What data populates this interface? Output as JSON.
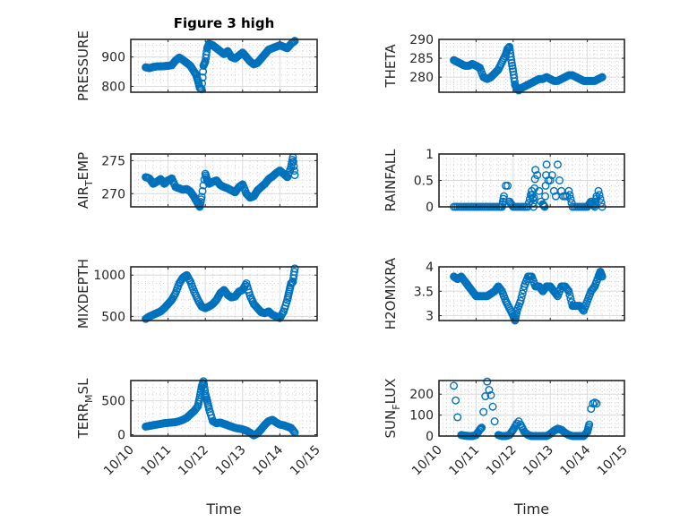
{
  "chart_data": [
    {
      "type": "scatter",
      "title": "Figure 3 high",
      "ylabel": "PRESSURE",
      "xlabel": "",
      "xlim": [
        "10/10",
        "10/15"
      ],
      "ylim": [
        780,
        960
      ],
      "yticks": [
        800,
        900
      ],
      "xticks": [
        "10/10",
        "10/11",
        "10/12",
        "10/13",
        "10/14",
        "10/15"
      ],
      "grid": true,
      "series": [
        {
          "name": "PRESSURE",
          "x": [
            0.4,
            0.5,
            0.6,
            0.7,
            0.8,
            0.9,
            1.0,
            1.1,
            1.2,
            1.3,
            1.4,
            1.5,
            1.6,
            1.7,
            1.75,
            1.8,
            1.85,
            1.9,
            1.95,
            2.0,
            2.05,
            2.1,
            2.2,
            2.3,
            2.4,
            2.5,
            2.6,
            2.7,
            2.8,
            2.9,
            3.0,
            3.1,
            3.2,
            3.3,
            3.4,
            3.5,
            3.6,
            3.7,
            3.8,
            3.9,
            4.0,
            4.1,
            4.2,
            4.3,
            4.4
          ],
          "y": [
            865,
            862,
            866,
            868,
            868,
            869,
            870,
            872,
            888,
            898,
            890,
            880,
            870,
            850,
            840,
            820,
            795,
            790,
            870,
            885,
            930,
            945,
            940,
            930,
            920,
            910,
            920,
            900,
            895,
            905,
            915,
            900,
            885,
            875,
            880,
            895,
            910,
            925,
            930,
            935,
            940,
            935,
            930,
            945,
            955
          ]
        }
      ]
    },
    {
      "type": "scatter",
      "title": "",
      "ylabel": "THETA",
      "xlabel": "",
      "xlim": [
        "10/10",
        "10/15"
      ],
      "ylim": [
        276,
        290
      ],
      "yticks": [
        280,
        285,
        290
      ],
      "xticks": [
        "10/10",
        "10/11",
        "10/12",
        "10/13",
        "10/14",
        "10/15"
      ],
      "grid": true,
      "series": [
        {
          "name": "THETA",
          "x": [
            0.4,
            0.5,
            0.6,
            0.7,
            0.8,
            0.9,
            1.0,
            1.1,
            1.2,
            1.3,
            1.4,
            1.5,
            1.6,
            1.7,
            1.8,
            1.85,
            1.9,
            1.95,
            2.0,
            2.05,
            2.1,
            2.15,
            2.2,
            2.3,
            2.4,
            2.5,
            2.6,
            2.7,
            2.8,
            2.9,
            3.0,
            3.1,
            3.2,
            3.3,
            3.4,
            3.5,
            3.6,
            3.7,
            3.8,
            3.9,
            4.0,
            4.1,
            4.2,
            4.3,
            4.4
          ],
          "y": [
            284.5,
            284,
            283.5,
            283,
            283,
            283.5,
            283,
            282.5,
            280,
            279.5,
            280,
            281,
            282,
            284,
            286,
            287.5,
            288,
            284.5,
            281.5,
            278,
            277,
            276.5,
            277,
            277.5,
            278,
            278.5,
            279,
            279.5,
            279.5,
            280,
            279.5,
            279,
            279,
            279.5,
            280,
            280.5,
            280.5,
            280,
            279.5,
            279,
            279,
            279,
            279,
            279.5,
            280
          ]
        }
      ]
    },
    {
      "type": "scatter",
      "title": "",
      "ylabel": "AIR_TEMP",
      "xlabel": "",
      "xlim": [
        "10/10",
        "10/15"
      ],
      "ylim": [
        268,
        276
      ],
      "yticks": [
        270,
        275
      ],
      "xticks": [
        "10/10",
        "10/11",
        "10/12",
        "10/13",
        "10/14",
        "10/15"
      ],
      "grid": true,
      "series": [
        {
          "name": "AIR_TEMP",
          "x": [
            0.4,
            0.5,
            0.6,
            0.7,
            0.8,
            0.9,
            1.0,
            1.1,
            1.2,
            1.3,
            1.4,
            1.5,
            1.6,
            1.7,
            1.75,
            1.8,
            1.85,
            1.9,
            2.0,
            2.05,
            2.1,
            2.2,
            2.3,
            2.4,
            2.5,
            2.6,
            2.7,
            2.8,
            2.9,
            3.0,
            3.1,
            3.2,
            3.3,
            3.4,
            3.5,
            3.6,
            3.7,
            3.8,
            3.9,
            4.0,
            4.1,
            4.2,
            4.3,
            4.35,
            4.4
          ],
          "y": [
            272.5,
            272.3,
            271.5,
            271.8,
            272.2,
            271.5,
            272,
            272.3,
            271,
            270.8,
            270.6,
            270.7,
            270.3,
            269.5,
            269,
            268.5,
            268,
            269.5,
            273,
            272,
            271.5,
            271.8,
            272,
            271.3,
            271,
            270.8,
            270.5,
            270.2,
            271,
            271.4,
            270,
            269.4,
            269.6,
            270.5,
            271,
            271.5,
            272.2,
            272.6,
            273.1,
            273.5,
            273,
            272.5,
            274,
            275.5,
            272.8
          ]
        }
      ]
    },
    {
      "type": "scatter",
      "title": "",
      "ylabel": "RAINFALL",
      "xlabel": "",
      "xlim": [
        "10/10",
        "10/15"
      ],
      "ylim": [
        0,
        1
      ],
      "yticks": [
        0,
        0.5,
        1
      ],
      "xticks": [
        "10/10",
        "10/11",
        "10/12",
        "10/13",
        "10/14",
        "10/15"
      ],
      "grid": true,
      "series": [
        {
          "name": "RAINFALL",
          "x": [
            0.4,
            0.6,
            0.8,
            1.0,
            1.2,
            1.4,
            1.6,
            1.7,
            1.75,
            1.8,
            1.85,
            1.9,
            2.0,
            2.2,
            2.4,
            2.5,
            2.55,
            2.6,
            2.65,
            2.7,
            2.75,
            2.8,
            2.85,
            2.9,
            2.95,
            3.0,
            3.05,
            3.1,
            3.15,
            3.2,
            3.25,
            3.3,
            3.35,
            3.4,
            3.45,
            3.5,
            3.6,
            3.8,
            4.0,
            4.1,
            4.2,
            4.25,
            4.3,
            4.4
          ],
          "y": [
            0,
            0,
            0,
            0,
            0,
            0,
            0,
            0,
            0.2,
            0.4,
            0.4,
            0.1,
            0,
            0,
            0,
            0.3,
            0,
            0.7,
            0.6,
            0.3,
            0.1,
            0.05,
            0,
            0.8,
            0.5,
            0.5,
            0.6,
            0.3,
            0.2,
            0.8,
            0.5,
            0.3,
            0.2,
            0.2,
            0.2,
            0.3,
            0,
            0,
            0,
            0.1,
            0,
            0.2,
            0.3,
            0
          ]
        }
      ]
    },
    {
      "type": "scatter",
      "title": "",
      "ylabel": "MIXDEPTH",
      "xlabel": "",
      "xlim": [
        "10/10",
        "10/15"
      ],
      "ylim": [
        450,
        1100
      ],
      "yticks": [
        500,
        1000
      ],
      "xticks": [
        "10/10",
        "10/11",
        "10/12",
        "10/13",
        "10/14",
        "10/15"
      ],
      "grid": true,
      "series": [
        {
          "name": "MIXDEPTH",
          "x": [
            0.4,
            0.5,
            0.6,
            0.7,
            0.8,
            0.9,
            1.0,
            1.1,
            1.2,
            1.3,
            1.4,
            1.5,
            1.6,
            1.7,
            1.8,
            1.9,
            2.0,
            2.1,
            2.2,
            2.3,
            2.4,
            2.5,
            2.6,
            2.7,
            2.8,
            2.9,
            3.0,
            3.1,
            3.2,
            3.3,
            3.4,
            3.5,
            3.6,
            3.7,
            3.8,
            3.9,
            4.0,
            4.1,
            4.2,
            4.25,
            4.3,
            4.35,
            4.4
          ],
          "y": [
            470,
            500,
            520,
            540,
            560,
            600,
            650,
            700,
            780,
            900,
            970,
            1000,
            920,
            800,
            700,
            620,
            600,
            620,
            650,
            700,
            780,
            820,
            760,
            730,
            740,
            800,
            820,
            900,
            750,
            650,
            600,
            550,
            540,
            560,
            520,
            500,
            480,
            560,
            700,
            800,
            900,
            920,
            1080
          ]
        }
      ]
    },
    {
      "type": "scatter",
      "title": "",
      "ylabel": "H2OMIXRA",
      "xlabel": "",
      "xlim": [
        "10/10",
        "10/15"
      ],
      "ylim": [
        2.9,
        4.0
      ],
      "yticks": [
        3,
        3.5,
        4
      ],
      "xticks": [
        "10/10",
        "10/11",
        "10/12",
        "10/13",
        "10/14",
        "10/15"
      ],
      "grid": true,
      "series": [
        {
          "name": "H2OMIXRA",
          "x": [
            0.4,
            0.5,
            0.6,
            0.7,
            0.8,
            0.9,
            1.0,
            1.1,
            1.2,
            1.3,
            1.4,
            1.5,
            1.6,
            1.7,
            1.8,
            1.9,
            2.0,
            2.05,
            2.1,
            2.2,
            2.3,
            2.4,
            2.5,
            2.6,
            2.7,
            2.8,
            2.9,
            3.0,
            3.1,
            3.2,
            3.3,
            3.4,
            3.5,
            3.6,
            3.7,
            3.8,
            3.9,
            4.0,
            4.1,
            4.2,
            4.3,
            4.35,
            4.4
          ],
          "y": [
            3.8,
            3.75,
            3.8,
            3.7,
            3.6,
            3.5,
            3.4,
            3.4,
            3.4,
            3.4,
            3.45,
            3.5,
            3.6,
            3.5,
            3.3,
            3.15,
            3.0,
            2.9,
            3.1,
            3.3,
            3.6,
            3.8,
            3.8,
            3.6,
            3.6,
            3.5,
            3.6,
            3.6,
            3.5,
            3.4,
            3.6,
            3.6,
            3.5,
            3.2,
            3.2,
            3.2,
            3.1,
            3.3,
            3.5,
            3.6,
            3.8,
            3.9,
            3.8
          ]
        }
      ]
    },
    {
      "type": "scatter",
      "title": "",
      "ylabel": "TERR_MSL",
      "xlabel": "Time",
      "xlim": [
        "10/10",
        "10/15"
      ],
      "ylim": [
        -20,
        800
      ],
      "yticks": [
        0,
        500
      ],
      "xticks": [
        "10/10",
        "10/11",
        "10/12",
        "10/13",
        "10/14",
        "10/15"
      ],
      "grid": true,
      "series": [
        {
          "name": "TERR_MSL",
          "x": [
            0.4,
            0.5,
            0.6,
            0.7,
            0.8,
            0.9,
            1.0,
            1.1,
            1.2,
            1.3,
            1.4,
            1.5,
            1.6,
            1.7,
            1.8,
            1.85,
            1.9,
            1.95,
            2.0,
            2.05,
            2.1,
            2.2,
            2.3,
            2.4,
            2.5,
            2.6,
            2.7,
            2.8,
            2.9,
            3.0,
            3.1,
            3.2,
            3.3,
            3.4,
            3.5,
            3.6,
            3.7,
            3.8,
            3.9,
            4.0,
            4.1,
            4.2,
            4.3,
            4.4
          ],
          "y": [
            120,
            130,
            140,
            150,
            160,
            170,
            175,
            180,
            185,
            200,
            220,
            250,
            300,
            350,
            420,
            550,
            700,
            790,
            600,
            500,
            380,
            200,
            170,
            180,
            160,
            140,
            120,
            100,
            90,
            80,
            60,
            30,
            -10,
            20,
            80,
            150,
            200,
            220,
            180,
            150,
            140,
            120,
            100,
            30
          ]
        }
      ]
    },
    {
      "type": "scatter",
      "title": "",
      "ylabel": "SUN_FLUX",
      "xlabel": "Time",
      "xlim": [
        "10/10",
        "10/15"
      ],
      "ylim": [
        0,
        265
      ],
      "yticks": [
        0,
        100,
        200
      ],
      "xticks": [
        "10/10",
        "10/11",
        "10/12",
        "10/13",
        "10/14",
        "10/15"
      ],
      "grid": true,
      "series": [
        {
          "name": "SUN_FLUX",
          "x": [
            0.4,
            0.45,
            0.5,
            0.6,
            0.7,
            0.8,
            0.9,
            1.0,
            1.1,
            1.15,
            1.2,
            1.25,
            1.3,
            1.35,
            1.4,
            1.45,
            1.5,
            1.6,
            1.7,
            1.8,
            1.9,
            2.0,
            2.1,
            2.15,
            2.2,
            2.3,
            2.4,
            2.5,
            2.6,
            2.7,
            2.8,
            2.9,
            3.0,
            3.1,
            3.2,
            3.3,
            3.4,
            3.5,
            3.6,
            3.7,
            3.8,
            3.9,
            4.0,
            4.05,
            4.1,
            4.15,
            4.2,
            4.25
          ],
          "y": [
            240,
            170,
            90,
            5,
            2,
            0,
            0,
            5,
            30,
            40,
            115,
            190,
            260,
            220,
            195,
            140,
            70,
            5,
            0,
            0,
            5,
            30,
            60,
            70,
            55,
            20,
            5,
            0,
            0,
            0,
            0,
            0,
            10,
            25,
            35,
            30,
            15,
            5,
            0,
            0,
            0,
            0,
            20,
            55,
            130,
            155,
            160,
            155
          ]
        }
      ]
    }
  ]
}
